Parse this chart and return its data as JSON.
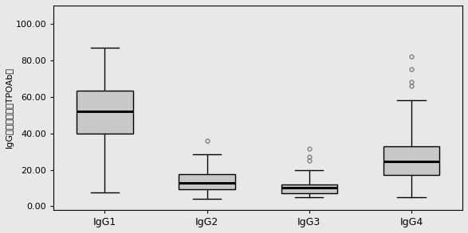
{
  "title": "",
  "ylabel": "IgG亚型百分比（TPOAb）",
  "xlabel": "",
  "categories": [
    "IgG1",
    "IgG2",
    "IgG3",
    "IgG4"
  ],
  "background_color": "#e8e8e8",
  "plot_bg_color": "#e8e8e8",
  "ylim": [
    -2,
    110
  ],
  "yticks": [
    0.0,
    20.0,
    40.0,
    60.0,
    80.0,
    100.0
  ],
  "box_data": {
    "IgG1": {
      "whislo": 7.5,
      "q1": 40.0,
      "med": 52.0,
      "q3": 63.5,
      "whishi": 87.0,
      "fliers": []
    },
    "IgG2": {
      "whislo": 4.0,
      "q1": 9.5,
      "med": 13.0,
      "q3": 17.5,
      "whishi": 28.5,
      "fliers": [
        36.0
      ]
    },
    "IgG3": {
      "whislo": 5.0,
      "q1": 7.0,
      "med": 10.0,
      "q3": 12.0,
      "whishi": 20.0,
      "fliers": [
        25.0,
        27.0,
        31.5
      ]
    },
    "IgG4": {
      "whislo": 5.0,
      "q1": 17.0,
      "med": 24.5,
      "q3": 33.0,
      "whishi": 58.0,
      "fliers": [
        66.0,
        68.0,
        75.0,
        82.0
      ]
    }
  },
  "box_facecolor": "#c8c8c8",
  "box_edgecolor": "#000000",
  "median_color": "#000000",
  "whisker_color": "#000000",
  "cap_color": "#000000",
  "flier_color": "#808080",
  "box_width": 0.55,
  "linewidth": 1.0,
  "median_linewidth": 2.2
}
